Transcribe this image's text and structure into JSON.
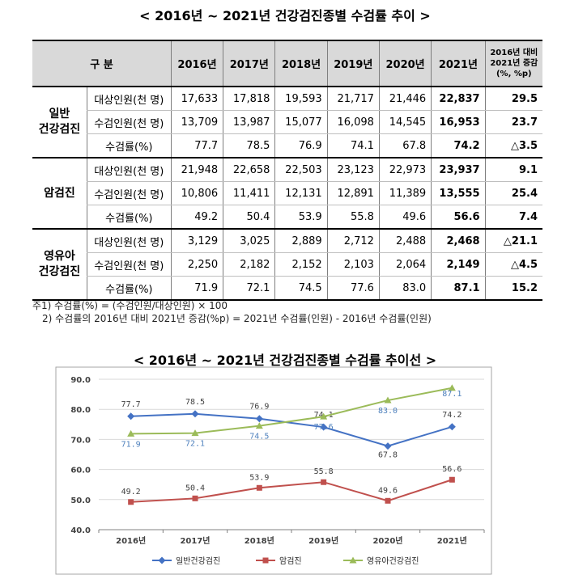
{
  "table_title": "< 2016년 ~ 2021년 건강검진종별 수검률 추이 >",
  "table": {
    "header": [
      "구 분",
      "2016년",
      "2017년",
      "2018년",
      "2019년",
      "2020년",
      "2021년"
    ],
    "header_last": [
      "2016년 대비",
      "2021년 증감",
      "(%, %p)"
    ],
    "groups": [
      {
        "name_lines": [
          "일반",
          "건강검진"
        ],
        "rows": [
          {
            "label": "대상인원(천 명)",
            "values": [
              "17,633",
              "17,818",
              "19,593",
              "21,717",
              "21,446",
              "22,837"
            ],
            "change": "29.5"
          },
          {
            "label": "수검인원(천 명)",
            "values": [
              "13,709",
              "13,987",
              "15,077",
              "16,098",
              "14,545",
              "16,953"
            ],
            "change": "23.7"
          },
          {
            "label": "수검률(%)",
            "values": [
              "77.7",
              "78.5",
              "76.9",
              "74.1",
              "67.8",
              "74.2"
            ],
            "change": "△3.5"
          }
        ]
      },
      {
        "name_lines": [
          "암검진"
        ],
        "rows": [
          {
            "label": "대상인원(천 명)",
            "values": [
              "21,948",
              "22,658",
              "22,503",
              "23,123",
              "22,973",
              "23,937"
            ],
            "change": "9.1"
          },
          {
            "label": "수검인원(천 명)",
            "values": [
              "10,806",
              "11,411",
              "12,131",
              "12,891",
              "11,389",
              "13,555"
            ],
            "change": "25.4"
          },
          {
            "label": "수검률(%)",
            "values": [
              "49.2",
              "50.4",
              "53.9",
              "55.8",
              "49.6",
              "56.6"
            ],
            "change": "7.4"
          }
        ]
      },
      {
        "name_lines": [
          "영유아",
          "건강검진"
        ],
        "rows": [
          {
            "label": "대상인원(천 명)",
            "values": [
              "3,129",
              "3,025",
              "2,889",
              "2,712",
              "2,488",
              "2,468"
            ],
            "change": "△21.1"
          },
          {
            "label": "수검인원(천 명)",
            "values": [
              "2,250",
              "2,182",
              "2,152",
              "2,103",
              "2,064",
              "2,149"
            ],
            "change": "△4.5"
          },
          {
            "label": "수검률(%)",
            "values": [
              "71.9",
              "72.1",
              "74.5",
              "77.6",
              "83.0",
              "87.1"
            ],
            "change": "15.2"
          }
        ]
      }
    ]
  },
  "notes": [
    "주1) 수검률(%) = (수검인원/대상인원) × 100",
    "2) 수검률의 2016년 대비 2021년 증감(%p) = 2021년 수검률(인원) - 2016년 수검률(인원)"
  ],
  "chart_title": "< 2016년 ~ 2021년 건강검진종별 수검률 추이선 >",
  "chart_data": {
    "type": "line",
    "categories": [
      "2016년",
      "2017년",
      "2018년",
      "2019년",
      "2020년",
      "2021년"
    ],
    "ylim": [
      40,
      90
    ],
    "yticks": [
      "40.0",
      "50.0",
      "60.0",
      "70.0",
      "80.0",
      "90.0"
    ],
    "grid": true,
    "legend": "bottom",
    "series": [
      {
        "name": "일반건강검진",
        "color": "#4472c4",
        "marker": "diamond",
        "values": [
          77.7,
          78.5,
          76.9,
          74.1,
          67.8,
          74.2
        ],
        "labels": [
          "77.7",
          "78.5",
          "76.9",
          "74.1",
          "67.8",
          "74.2"
        ]
      },
      {
        "name": "암검진",
        "color": "#c0504d",
        "marker": "square",
        "values": [
          49.2,
          50.4,
          53.9,
          55.8,
          49.6,
          56.6
        ],
        "labels": [
          "49.2",
          "50.4",
          "53.9",
          "55.8",
          "49.6",
          "56.6"
        ]
      },
      {
        "name": "영유아건강검진",
        "color": "#9bbb59",
        "marker": "triangle",
        "values": [
          71.9,
          72.1,
          74.5,
          77.6,
          83.0,
          87.1
        ],
        "labels": [
          "71.9",
          "72.1",
          "74.5",
          "77.6",
          "83.0",
          "87.1"
        ]
      }
    ]
  }
}
